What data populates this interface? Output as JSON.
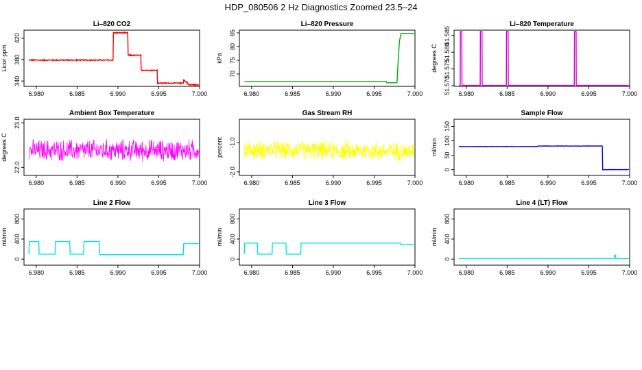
{
  "figure_title": "HDP_080506  2 Hz Diagnostics Zoomed 23.5–24",
  "chart_data": [
    {
      "type": "line",
      "title": "Li–820 CO2",
      "xlabel": "",
      "ylabel": "Licor ppm",
      "xlim": [
        6.9785,
        7.0
      ],
      "ylim": [
        330,
        435
      ],
      "xticks": [
        "6.980",
        "6.985",
        "6.990",
        "6.995",
        "7.000"
      ],
      "xtick_values": [
        6.98,
        6.985,
        6.99,
        6.995,
        7.0
      ],
      "yticks": [
        "340",
        "380",
        "420"
      ],
      "ytick_values": [
        340,
        380,
        420
      ],
      "color": "#ff0000",
      "noise": 1.2,
      "series": [
        {
          "x": [
            6.9791,
            6.9894,
            6.98945,
            6.9912,
            6.99125,
            6.9928,
            6.99285,
            6.9948,
            6.99485,
            6.998,
            6.99805,
            6.99855,
            6.9986,
            6.9999
          ],
          "y": [
            379,
            379,
            430,
            430,
            388,
            388,
            360,
            360,
            336,
            336,
            342,
            336,
            333,
            333
          ]
        }
      ]
    },
    {
      "type": "line",
      "title": "Li–820 Pressure",
      "xlabel": "",
      "ylabel": "kPa",
      "xlim": [
        6.9785,
        7.0
      ],
      "ylim": [
        65.5,
        86
      ],
      "xticks": [
        "6.980",
        "6.985",
        "6.990",
        "6.995",
        "7.000"
      ],
      "xtick_values": [
        6.98,
        6.985,
        6.99,
        6.995,
        7.0
      ],
      "yticks": [
        "70",
        "75",
        "80",
        "85"
      ],
      "ytick_values": [
        70,
        75,
        80,
        85
      ],
      "color": "#00aa00",
      "noise": 0,
      "series": [
        {
          "x": [
            6.9791,
            6.9965,
            6.99655,
            6.9978,
            6.99795,
            6.9981,
            6.9983,
            6.9999
          ],
          "y": [
            67.2,
            67.2,
            66.8,
            66.8,
            75,
            82,
            84.8,
            84.8
          ]
        }
      ]
    },
    {
      "type": "line",
      "title": "Li–820 Temperature",
      "xlabel": "",
      "ylabel": "degrees C",
      "xlim": [
        6.9785,
        7.0
      ],
      "ylim": [
        51.5698,
        51.5866
      ],
      "xticks": [
        "6.980",
        "6.985",
        "6.990",
        "6.995",
        "7.000"
      ],
      "xtick_values": [
        6.98,
        6.985,
        6.99,
        6.995,
        7.0
      ],
      "yticks": [
        "51.570",
        "51.575",
        "51.580",
        "51.585"
      ],
      "ytick_values": [
        51.57,
        51.575,
        51.58,
        51.585
      ],
      "color": "#cc00cc",
      "noise": 0,
      "series": [
        {
          "x": [
            6.9791,
            6.97925,
            6.97927,
            6.97945,
            6.97947,
            6.9817,
            6.98172,
            6.98192,
            6.98194,
            6.9849,
            6.98492,
            6.98512,
            6.98514,
            6.99322,
            6.99324,
            6.99344,
            6.99346,
            6.9999
          ],
          "y": [
            51.5701,
            51.5701,
            51.5862,
            51.5862,
            51.5701,
            51.5701,
            51.5862,
            51.5862,
            51.5701,
            51.5701,
            51.5862,
            51.5862,
            51.5701,
            51.5701,
            51.5862,
            51.5862,
            51.5701,
            51.5701
          ]
        }
      ]
    },
    {
      "type": "line",
      "title": "Ambient Box Temperature",
      "xlabel": "",
      "ylabel": "degrees C",
      "xlim": [
        6.9785,
        7.0
      ],
      "ylim": [
        21.82,
        23.08
      ],
      "xticks": [
        "6.980",
        "6.985",
        "6.990",
        "6.995",
        "7.000"
      ],
      "xtick_values": [
        6.98,
        6.985,
        6.99,
        6.995,
        7.0
      ],
      "yticks": [
        "22.0",
        "23.0"
      ],
      "ytick_values": [
        22.0,
        23.0
      ],
      "color": "#ff00ff",
      "noise": 0.28,
      "series": [
        {
          "x": [
            6.9791,
            6.9999
          ],
          "y": [
            22.38,
            22.38
          ]
        }
      ]
    },
    {
      "type": "line",
      "title": "Gas Stream RH",
      "xlabel": "",
      "ylabel": "percent",
      "xlim": [
        6.9785,
        7.0
      ],
      "ylim": [
        -2.12,
        -0.2
      ],
      "xticks": [
        "6.980",
        "6.985",
        "6.990",
        "6.995",
        "7.000"
      ],
      "xtick_values": [
        6.98,
        6.985,
        6.99,
        6.995,
        7.0
      ],
      "yticks": [
        "-2.0",
        "-1.0"
      ],
      "ytick_values": [
        -2.0,
        -1.0
      ],
      "color": "#ffff00",
      "noise": 0.38,
      "series": [
        {
          "x": [
            6.9791,
            6.9999
          ],
          "y": [
            -1.25,
            -1.3
          ]
        }
      ]
    },
    {
      "type": "line",
      "title": "Sample Flow",
      "xlabel": "",
      "ylabel": "ml/min",
      "xlim": [
        6.9785,
        7.0
      ],
      "ylim": [
        -20,
        175
      ],
      "xticks": [
        "6.980",
        "6.985",
        "6.990",
        "6.995",
        "7.000"
      ],
      "xtick_values": [
        6.98,
        6.985,
        6.99,
        6.995,
        7.0
      ],
      "yticks": [
        "0",
        "50",
        "100",
        "150"
      ],
      "ytick_values": [
        0,
        50,
        100,
        150
      ],
      "color": "#0000cc",
      "noise": 0.8,
      "series": [
        {
          "x": [
            6.9791,
            6.9888,
            6.98885,
            6.99665,
            6.9967,
            6.9999
          ],
          "y": [
            80,
            80,
            82,
            82,
            0,
            0
          ]
        }
      ]
    },
    {
      "type": "line",
      "title": "Line 2 Flow",
      "xlabel": "",
      "ylabel": "ml/min",
      "xlim": [
        6.9785,
        7.0
      ],
      "ylim": [
        -120,
        1000
      ],
      "xticks": [
        "6.980",
        "6.985",
        "6.990",
        "6.995",
        "7.000"
      ],
      "xtick_values": [
        6.98,
        6.985,
        6.99,
        6.995,
        7.0
      ],
      "yticks": [
        "0",
        "400",
        "800"
      ],
      "ytick_values": [
        0,
        400,
        800
      ],
      "color": "#00e5e5",
      "noise": 0,
      "series": [
        {
          "x": [
            6.9791,
            6.97915,
            6.9803,
            6.98035,
            6.9823,
            6.98235,
            6.9841,
            6.98415,
            6.9858,
            6.98585,
            6.9877,
            6.98775,
            6.998,
            6.99805,
            6.9999
          ],
          "y": [
            100,
            350,
            350,
            100,
            100,
            350,
            350,
            100,
            100,
            350,
            350,
            90,
            90,
            310,
            310
          ]
        }
      ]
    },
    {
      "type": "line",
      "title": "Line 3 Flow",
      "xlabel": "",
      "ylabel": "ml/min",
      "xlim": [
        6.9785,
        7.0
      ],
      "ylim": [
        -120,
        1000
      ],
      "xticks": [
        "6.980",
        "6.985",
        "6.990",
        "6.995",
        "7.000"
      ],
      "xtick_values": [
        6.98,
        6.985,
        6.99,
        6.995,
        7.0
      ],
      "yticks": [
        "0",
        "400",
        "800"
      ],
      "ytick_values": [
        0,
        400,
        800
      ],
      "color": "#00e5e5",
      "noise": 0,
      "series": [
        {
          "x": [
            6.9791,
            6.97915,
            6.9807,
            6.98075,
            6.9825,
            6.98255,
            6.9842,
            6.98425,
            6.986,
            6.98605,
            6.9877,
            6.98775,
            6.9982,
            6.99825,
            6.9999
          ],
          "y": [
            100,
            320,
            320,
            100,
            100,
            320,
            320,
            100,
            100,
            320,
            320,
            320,
            320,
            290,
            290
          ]
        }
      ]
    },
    {
      "type": "line",
      "title": "Line 4 (LT) Flow",
      "xlabel": "",
      "ylabel": "ml/min",
      "xlim": [
        6.9785,
        7.0
      ],
      "ylim": [
        -120,
        1000
      ],
      "xticks": [
        "6.980",
        "6.985",
        "6.990",
        "6.995",
        "7.000"
      ],
      "xtick_values": [
        6.98,
        6.985,
        6.99,
        6.995,
        7.0
      ],
      "yticks": [
        "0",
        "400",
        "800"
      ],
      "ytick_values": [
        0,
        400,
        800
      ],
      "color": "#00e5e5",
      "noise": 0,
      "series": [
        {
          "x": [
            6.9791,
            6.9981,
            6.99815,
            6.99825,
            6.9983,
            6.9999
          ],
          "y": [
            10,
            10,
            80,
            80,
            10,
            10
          ]
        }
      ]
    }
  ]
}
